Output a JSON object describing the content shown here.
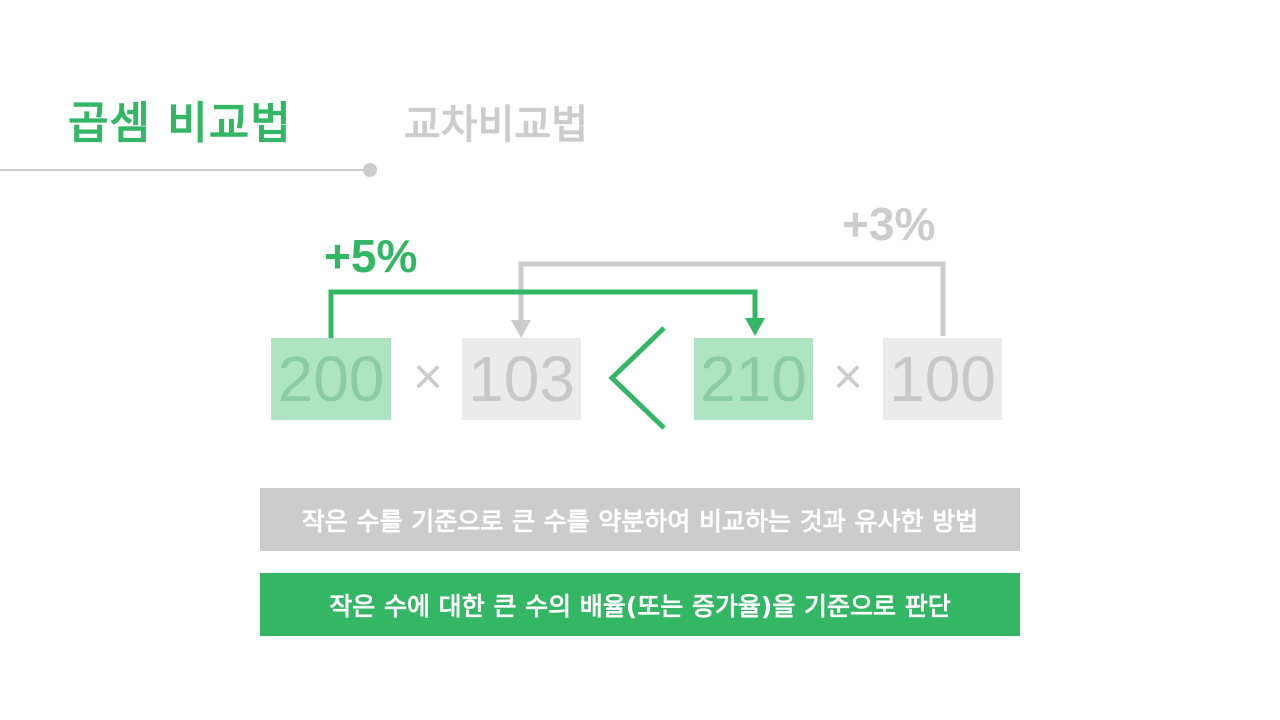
{
  "header": {
    "title": "곱셈 비교법",
    "subtitle": "교차비교법"
  },
  "comparison": {
    "left": {
      "a": "200",
      "b": "103"
    },
    "right": {
      "a": "210",
      "b": "100"
    },
    "times_symbol": "×",
    "relation_symbol": "<",
    "arrow_green_label": "+5%",
    "arrow_gray_label": "+3%"
  },
  "banners": {
    "gray": "작은 수를 기준으로 큰 수를 약분하여 비교하는 것과 유사한 방법",
    "green": "작은 수에 대한 큰 수의 배율(또는 증가율)을 기준으로 판단"
  },
  "colors": {
    "accent": "#34b765",
    "accent_light": "#afe4c3",
    "muted": "#cccccc",
    "muted_light": "#ebebeb"
  }
}
